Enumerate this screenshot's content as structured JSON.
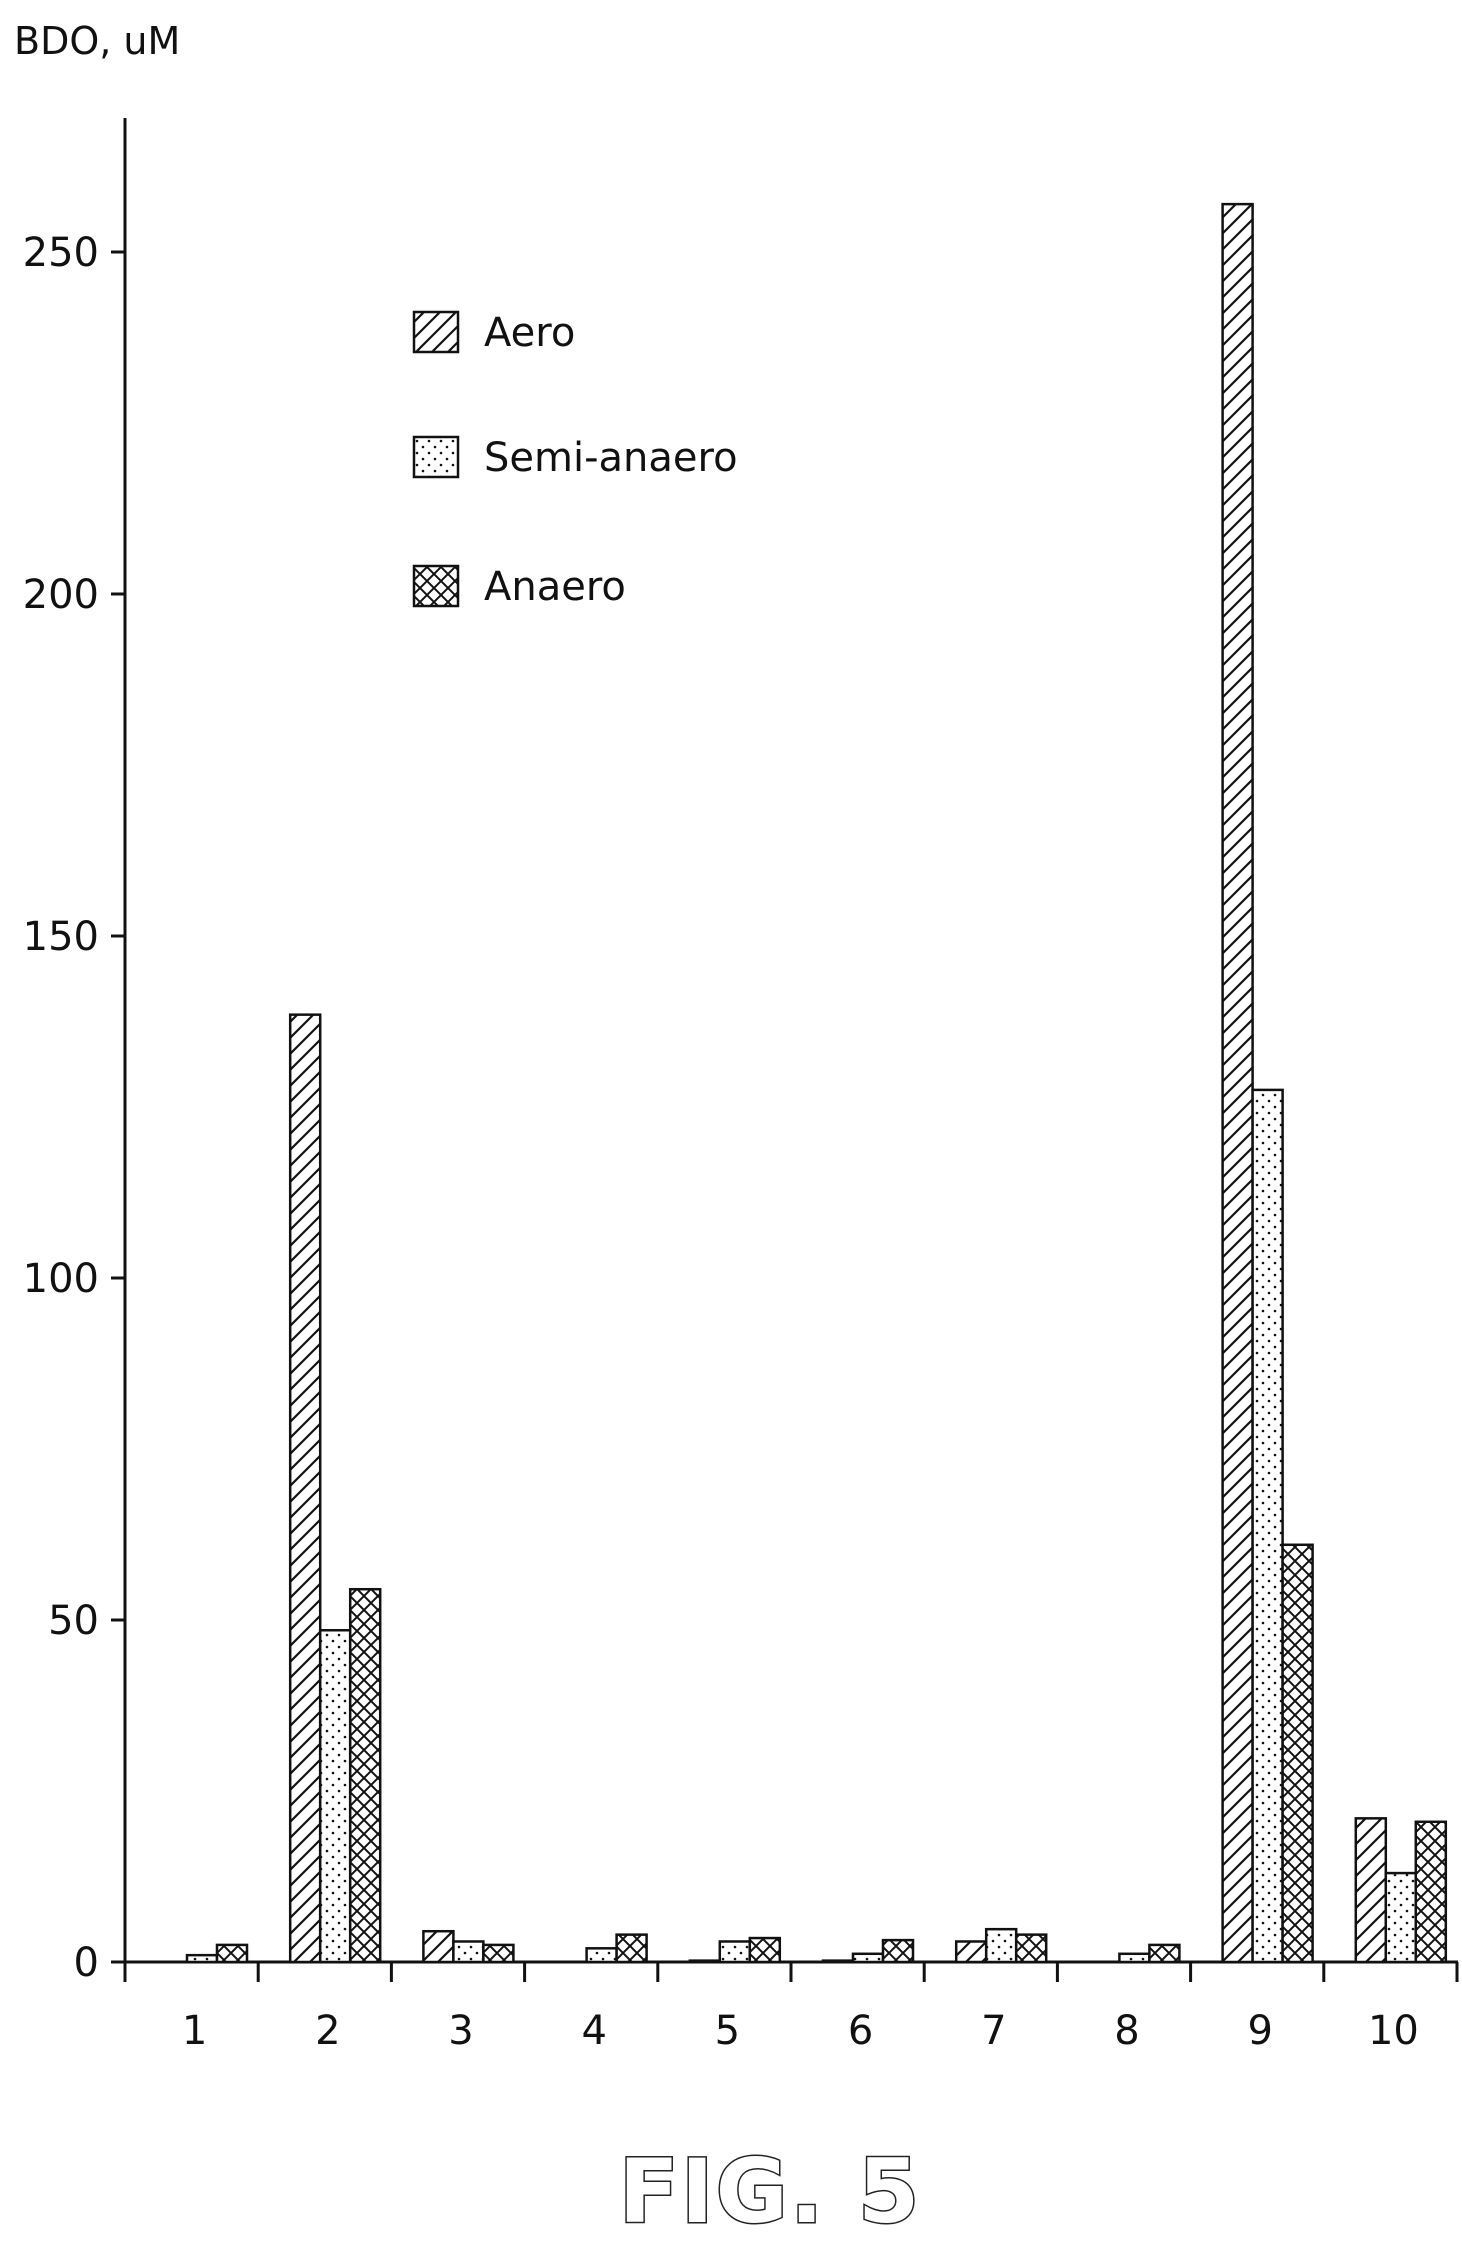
{
  "figure_label": "FIG. 5",
  "chart_data": {
    "type": "bar",
    "ylabel": "BDO, uM",
    "xlabel": "",
    "categories": [
      "1",
      "2",
      "3",
      "4",
      "5",
      "6",
      "7",
      "8",
      "9",
      "10"
    ],
    "ylim": [
      0,
      270
    ],
    "yticks": [
      0,
      50,
      100,
      150,
      200,
      250
    ],
    "legend_position": "top-left",
    "grid": false,
    "series": [
      {
        "name": "Aero",
        "pattern": "diagonal-hatch",
        "values": [
          0,
          138.5,
          4.5,
          0,
          0.2,
          0.2,
          3,
          0,
          257,
          21
        ]
      },
      {
        "name": "Semi-anaero",
        "pattern": "dots",
        "values": [
          1,
          48.5,
          3,
          2,
          3,
          1.2,
          4.8,
          1.2,
          127.5,
          13
        ]
      },
      {
        "name": "Anaero",
        "pattern": "crosshatch",
        "values": [
          2.5,
          54.5,
          2.5,
          4,
          3.5,
          3.2,
          4,
          2.5,
          61,
          20.5
        ]
      }
    ]
  }
}
